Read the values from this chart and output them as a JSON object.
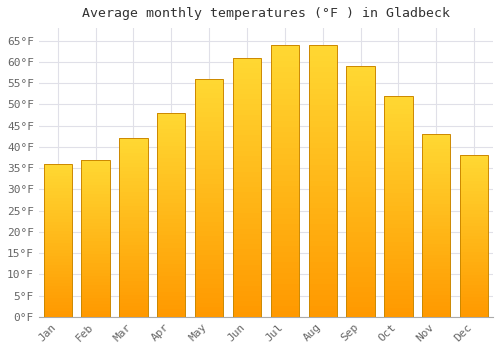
{
  "title": "Average monthly temperatures (°F ) in Gladbeck",
  "months": [
    "Jan",
    "Feb",
    "Mar",
    "Apr",
    "May",
    "Jun",
    "Jul",
    "Aug",
    "Sep",
    "Oct",
    "Nov",
    "Dec"
  ],
  "values": [
    36,
    37,
    42,
    48,
    56,
    61,
    64,
    64,
    59,
    52,
    43,
    38
  ],
  "bar_color_top": "#FFBB00",
  "bar_color_bottom": "#FF9900",
  "bar_color_edge": "#CC8800",
  "background_color": "#FFFFFF",
  "grid_color": "#E0E0E8",
  "title_fontsize": 9.5,
  "tick_fontsize": 8,
  "ylim": [
    0,
    68
  ],
  "yticks": [
    0,
    5,
    10,
    15,
    20,
    25,
    30,
    35,
    40,
    45,
    50,
    55,
    60,
    65
  ]
}
